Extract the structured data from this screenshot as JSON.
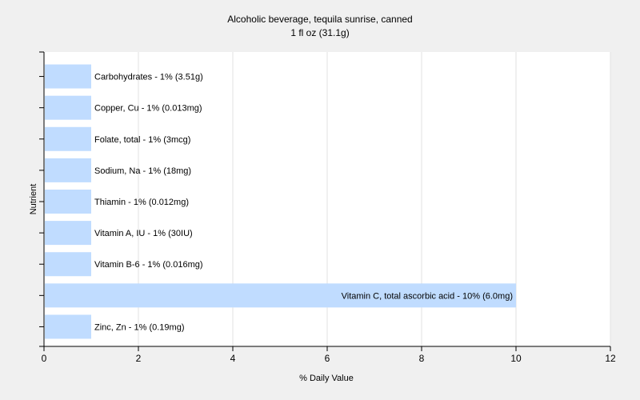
{
  "chart_data": {
    "type": "bar",
    "orientation": "horizontal",
    "title": "Alcoholic beverage, tequila sunrise, canned",
    "subtitle": "1 fl oz (31.1g)",
    "xlabel": "% Daily Value",
    "ylabel": "Nutrient",
    "xlim": [
      0,
      12
    ],
    "xticks": [
      "0",
      "2",
      "4",
      "6",
      "8",
      "10",
      "12"
    ],
    "grid": "vertical",
    "bar_color": "#c0dcff",
    "categories": [
      "Carbohydrates",
      "Copper, Cu",
      "Folate, total",
      "Sodium, Na",
      "Thiamin",
      "Vitamin A, IU",
      "Vitamin B-6",
      "Vitamin C, total ascorbic acid",
      "Zinc, Zn"
    ],
    "values": [
      1,
      1,
      1,
      1,
      1,
      1,
      1,
      10,
      1
    ],
    "labels": [
      "Carbohydrates - 1% (3.51g)",
      "Copper, Cu - 1% (0.013mg)",
      "Folate, total - 1% (3mcg)",
      "Sodium, Na - 1% (18mg)",
      "Thiamin - 1% (0.012mg)",
      "Vitamin A, IU - 1% (30IU)",
      "Vitamin B-6 - 1% (0.016mg)",
      "Vitamin C, total ascorbic acid - 10% (6.0mg)",
      "Zinc, Zn - 1% (0.19mg)"
    ]
  }
}
